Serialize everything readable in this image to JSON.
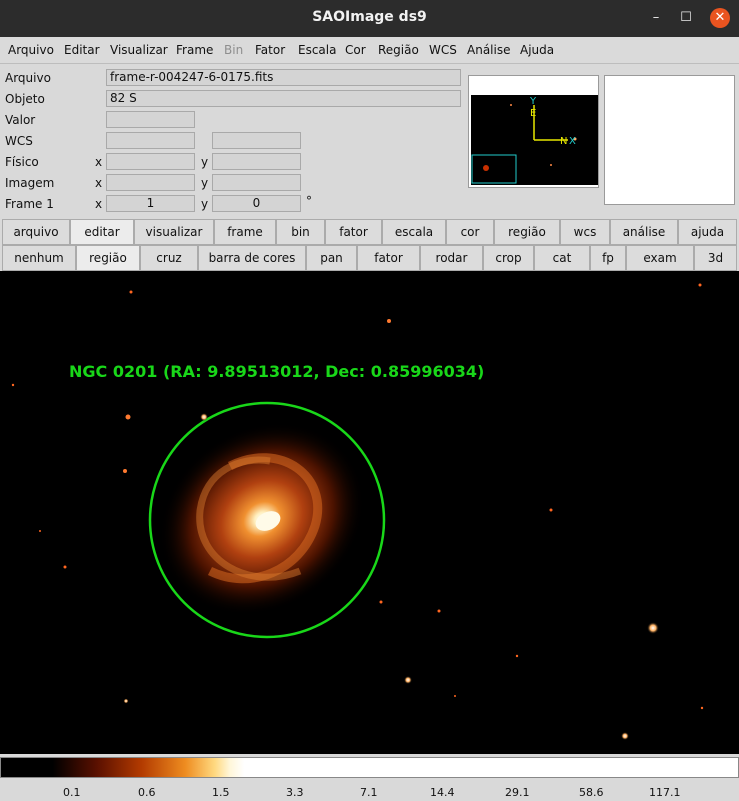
{
  "window": {
    "title": "SAOImage ds9",
    "controls": [
      "–",
      "☐",
      "✕"
    ]
  },
  "menu": [
    "Arquivo",
    "Editar",
    "Visualizar",
    "Frame",
    "Bin",
    "Fator",
    "Escala",
    "Cor",
    "Região",
    "WCS",
    "Análise",
    "Ajuda"
  ],
  "info": {
    "arquivo_label": "Arquivo",
    "arquivo_value": "frame-r-004247-6-0175.fits",
    "objeto_label": "Objeto",
    "objeto_value": "82 S",
    "valor_label": "Valor",
    "wcs_label": "WCS",
    "fisico_label": "Físico",
    "imagem_label": "Imagem",
    "frame_label": "Frame 1",
    "x": "x",
    "y": "y",
    "frame_x": "1",
    "frame_y": "0",
    "degree": "°"
  },
  "panner": {
    "axis_y": "Y",
    "axis_e": "E",
    "axis_n": "N",
    "axis_x": "X",
    "colors": {
      "compass": "#e8e800",
      "frame": "#22cccc"
    }
  },
  "button_row_1": [
    "arquivo",
    "editar",
    "visualizar",
    "frame",
    "bin",
    "fator",
    "escala",
    "cor",
    "região",
    "wcs",
    "análise",
    "ajuda"
  ],
  "button_row_2": [
    "nenhum",
    "região",
    "cruz",
    "barra de cores",
    "pan",
    "fator",
    "rodar",
    "crop",
    "cat",
    "fp",
    "exam",
    "3d"
  ],
  "selected": {
    "row1": "editar",
    "row2": "região"
  },
  "image": {
    "region_label": "NGC 0201 (RA: 9.89513012, Dec: 0.85996034)",
    "region_color": "#19d719"
  },
  "colorbar": {
    "ticks": [
      "0.1",
      "0.6",
      "1.5",
      "3.3",
      "7.1",
      "14.4",
      "29.1",
      "58.6",
      "117.1"
    ]
  },
  "colors": {
    "titlebar": "#2c2c2c",
    "close": "#e95420"
  }
}
